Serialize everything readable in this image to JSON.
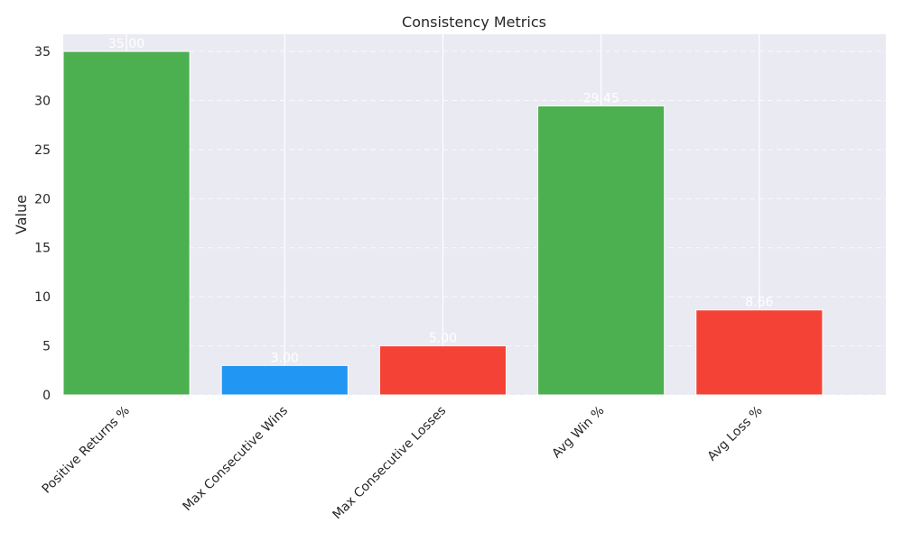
{
  "chart_data": {
    "type": "bar",
    "title": "Consistency Metrics",
    "xlabel": "",
    "ylabel": "Value",
    "categories": [
      "Positive Returns %",
      "Max Consecutive Wins",
      "Max Consecutive Losses",
      "Avg Win %",
      "Avg Loss %"
    ],
    "values": [
      35.0,
      3.0,
      5.0,
      29.45,
      8.66
    ],
    "data_labels": [
      "35.00",
      "3.00",
      "5.00",
      "29.45",
      "8.66"
    ],
    "colors": [
      "#4caf50",
      "#2196f3",
      "#f44336",
      "#4caf50",
      "#f44336"
    ],
    "ylim": [
      0,
      36.75
    ],
    "yticks": [
      0,
      5,
      10,
      15,
      20,
      25,
      30,
      35
    ],
    "grid": true,
    "legend": "none",
    "background": "#eaeaf2",
    "gridline_color": "#ffffff"
  }
}
